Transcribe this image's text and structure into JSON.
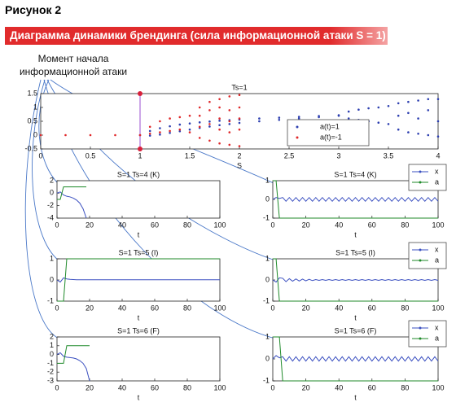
{
  "header": "Рисунок 2",
  "banner": "Диаграмма динамики брендинга (сила информационной атаки S = 1)",
  "annotation": "Момент начала информационной атаки",
  "chart_data": [
    {
      "type": "scatter",
      "title": "Ts=1",
      "x_label": "S",
      "xlim": [
        0,
        4
      ],
      "xticks": [
        0,
        0.5,
        1,
        1.5,
        2,
        2.5,
        3,
        3.5,
        4
      ],
      "ylim": [
        -0.5,
        1.5
      ],
      "yticks": [
        -0.5,
        0,
        0.5,
        1,
        1.5
      ],
      "vline": 1,
      "vline_color": "#9b4fd0",
      "legend": "lower right",
      "series": [
        {
          "name": "a(t)=1",
          "color": "#2d3fb0",
          "x": [
            1,
            1.1,
            1.2,
            1.3,
            1.4,
            1.5,
            1.6,
            1.7,
            1.8,
            1.9,
            2,
            2.2,
            2.4,
            2.6,
            2.8,
            3,
            1.1,
            1.2,
            1.3,
            1.4,
            1.5,
            1.6,
            1.7,
            1.8,
            1.9,
            2,
            2.2,
            2.4,
            2.6,
            2.8,
            3,
            3.1,
            3.2,
            3.3,
            3.4,
            3.5,
            3.1,
            3.2,
            3.3,
            3.4,
            3.5,
            3.6,
            3.6,
            3.6,
            3.7,
            3.7,
            3.7,
            3.8,
            3.8,
            3.8,
            3.9,
            3.9,
            3.9,
            4,
            4,
            4
          ],
          "values": [
            0,
            0.15,
            0.25,
            0.32,
            0.38,
            0.42,
            0.46,
            0.49,
            0.52,
            0.54,
            0.56,
            0.6,
            0.63,
            0.66,
            0.69,
            0.72,
            -0.02,
            0.02,
            0.08,
            0.14,
            0.2,
            0.26,
            0.31,
            0.36,
            0.4,
            0.44,
            0.5,
            0.55,
            0.6,
            0.65,
            0.7,
            0.85,
            0.92,
            0.97,
            1.0,
            1.05,
            0.6,
            0.55,
            0.5,
            0.45,
            0.4,
            0.2,
            0.7,
            1.15,
            0.1,
            0.8,
            1.2,
            0.05,
            0.6,
            1.25,
            0.0,
            0.9,
            1.3,
            -0.05,
            0.5,
            1.3
          ]
        },
        {
          "name": "a(t)=-1",
          "color": "#e0282a",
          "x": [
            0,
            0.25,
            0.5,
            0.75,
            1,
            1.1,
            1.2,
            1.3,
            1.4,
            1.5,
            1.1,
            1.2,
            1.3,
            1.4,
            1.5,
            1.6,
            1.6,
            1.6,
            1.6,
            1.7,
            1.7,
            1.7,
            1.7,
            1.8,
            1.8,
            1.8,
            1.8,
            1.8,
            1.9,
            1.9,
            1.9,
            1.9,
            1.9,
            2,
            2,
            2,
            2,
            2
          ],
          "values": [
            0,
            0,
            0,
            0,
            0,
            0.3,
            0.5,
            0.6,
            0.65,
            0.7,
            0.05,
            0.1,
            0.15,
            0.2,
            0.1,
            -0.1,
            0.3,
            0.7,
            1.0,
            -0.2,
            0.4,
            0.9,
            1.2,
            -0.3,
            0.2,
            0.6,
            1.0,
            1.3,
            -0.35,
            0.1,
            0.5,
            0.9,
            1.4,
            -0.4,
            0.2,
            0.6,
            1.0,
            1.45
          ]
        }
      ]
    },
    {
      "type": "line",
      "title": "S=1 Ts=4 (K)",
      "x_label": "t",
      "xlim": [
        0,
        100
      ],
      "xticks": [
        0,
        20,
        40,
        60,
        80,
        100
      ],
      "ylim": [
        -4,
        2
      ],
      "yticks": [
        -4,
        -2,
        0,
        2
      ],
      "x": [
        0,
        2,
        4,
        6,
        8,
        10,
        12,
        14,
        16,
        18
      ],
      "series": [
        {
          "name": "x",
          "color": "#3a4fc0",
          "values": [
            0,
            0.2,
            -0.3,
            -0.5,
            -0.6,
            -0.8,
            -1.1,
            -1.6,
            -2.5,
            -4
          ]
        },
        {
          "name": "a",
          "color": "#1f8a2a",
          "values": [
            -1,
            -1,
            1,
            1,
            1,
            1,
            1,
            1,
            1,
            1
          ]
        }
      ]
    },
    {
      "type": "line",
      "title": "S=1 Ts=4 (K)",
      "x_label": "t",
      "xlim": [
        0,
        100
      ],
      "xticks": [
        0,
        20,
        40,
        60,
        80,
        100
      ],
      "ylim": [
        -1,
        1
      ],
      "yticks": [
        -1,
        0,
        1
      ],
      "legend": "upper right",
      "x": [
        0,
        2,
        4,
        6,
        8,
        10,
        12,
        14,
        16,
        18,
        20,
        22,
        24,
        26,
        28,
        30,
        32,
        34,
        36,
        38,
        40,
        42,
        44,
        46,
        48,
        50,
        52,
        54,
        56,
        58,
        60,
        62,
        64,
        66,
        68,
        70,
        72,
        74,
        76,
        78,
        80,
        82,
        84,
        86,
        88,
        90,
        92,
        94,
        96,
        98,
        100
      ],
      "series": [
        {
          "name": "x",
          "color": "#3a4fc0",
          "values": [
            0,
            0.1,
            0.05,
            0.1,
            -0.1,
            0.1,
            -0.1,
            0.1,
            -0.1,
            0.1,
            -0.1,
            0.1,
            -0.1,
            0.1,
            -0.1,
            0.1,
            -0.1,
            0.1,
            -0.1,
            0.1,
            -0.1,
            0.1,
            -0.1,
            0.1,
            -0.1,
            0.1,
            -0.1,
            0.1,
            -0.1,
            0.1,
            -0.1,
            0.1,
            -0.1,
            0.1,
            -0.1,
            0.1,
            -0.1,
            0.1,
            -0.1,
            0.1,
            -0.1,
            0.1,
            -0.1,
            0.1,
            -0.1,
            0.1,
            -0.1,
            0.1,
            -0.1,
            0.1,
            -0.1
          ]
        },
        {
          "name": "a",
          "color": "#1f8a2a",
          "values": [
            1,
            1,
            -1,
            -1,
            -1,
            -1,
            -1,
            -1,
            -1,
            -1,
            -1,
            -1,
            -1,
            -1,
            -1,
            -1,
            -1,
            -1,
            -1,
            -1,
            -1,
            -1,
            -1,
            -1,
            -1,
            -1,
            -1,
            -1,
            -1,
            -1,
            -1,
            -1,
            -1,
            -1,
            -1,
            -1,
            -1,
            -1,
            -1,
            -1,
            -1,
            -1,
            -1,
            -1,
            -1,
            -1,
            -1,
            -1,
            -1,
            -1,
            -1
          ]
        }
      ]
    },
    {
      "type": "line",
      "title": "S=1 Ts=5 (I)",
      "x_label": "t",
      "xlim": [
        0,
        100
      ],
      "xticks": [
        0,
        20,
        40,
        60,
        80,
        100
      ],
      "ylim": [
        -1,
        1
      ],
      "yticks": [
        -1,
        0,
        1
      ],
      "x": [
        0,
        2,
        4,
        6,
        8,
        10,
        12,
        14,
        16,
        18,
        20,
        22,
        24,
        26,
        28,
        30,
        32,
        34,
        36,
        38,
        40,
        42,
        44,
        46,
        48,
        50,
        52,
        54,
        56,
        58,
        60,
        62,
        64,
        66,
        68,
        70,
        72,
        74,
        76,
        78,
        80,
        82,
        84,
        86,
        88,
        90,
        92,
        94,
        96,
        98,
        100
      ],
      "series": [
        {
          "name": "x",
          "color": "#3a4fc0",
          "values": [
            0,
            -0.1,
            0.1,
            0.05,
            0.03,
            0.02,
            0.01,
            0.01,
            0.01,
            0.01,
            0.01,
            0.01,
            0.01,
            0.01,
            0.01,
            0.01,
            0.01,
            0.01,
            0.01,
            0.01,
            0.01,
            0.01,
            0.01,
            0.01,
            0.01,
            0.01,
            0.01,
            0.01,
            0.01,
            0.01,
            0.01,
            0.01,
            0.01,
            0.01,
            0.01,
            0.01,
            0.01,
            0.01,
            0.01,
            0.01,
            0.01,
            0.01,
            0.01,
            0.01,
            0.01,
            0.01,
            0.01,
            0.01,
            0.01,
            0.01,
            0.01
          ]
        },
        {
          "name": "a",
          "color": "#1f8a2a",
          "values": [
            -1,
            -1,
            -1,
            1,
            1,
            1,
            1,
            1,
            1,
            1,
            1,
            1,
            1,
            1,
            1,
            1,
            1,
            1,
            1,
            1,
            1,
            1,
            1,
            1,
            1,
            1,
            1,
            1,
            1,
            1,
            1,
            1,
            1,
            1,
            1,
            1,
            1,
            1,
            1,
            1,
            1,
            1,
            1,
            1,
            1,
            1,
            1,
            1,
            1,
            1,
            1
          ]
        }
      ]
    },
    {
      "type": "line",
      "title": "S=1 Ts=5 (I)",
      "x_label": "t",
      "xlim": [
        0,
        100
      ],
      "xticks": [
        0,
        20,
        40,
        60,
        80,
        100
      ],
      "ylim": [
        -1,
        1
      ],
      "yticks": [
        -1,
        0,
        1
      ],
      "legend": "upper right",
      "x": [
        0,
        2,
        4,
        6,
        8,
        10,
        12,
        14,
        16,
        18,
        20,
        22,
        24,
        26,
        28,
        30,
        32,
        34,
        36,
        38,
        40,
        42,
        44,
        46,
        48,
        50,
        52,
        54,
        56,
        58,
        60,
        62,
        64,
        66,
        68,
        70,
        72,
        74,
        76,
        78,
        80,
        82,
        84,
        86,
        88,
        90,
        92,
        94,
        96,
        98,
        100
      ],
      "series": [
        {
          "name": "x",
          "color": "#3a4fc0",
          "values": [
            0,
            -0.1,
            0.1,
            0.08,
            -0.08,
            0.06,
            -0.06,
            0.05,
            -0.05,
            0.04,
            -0.04,
            0.03,
            -0.03,
            0.02,
            -0.02,
            0.02,
            -0.02,
            0.02,
            -0.02,
            0.02,
            -0.02,
            0.02,
            -0.02,
            0.02,
            -0.02,
            0.02,
            -0.02,
            0.02,
            -0.02,
            0.02,
            -0.02,
            0.02,
            -0.02,
            0.02,
            -0.02,
            0.02,
            -0.02,
            0.02,
            -0.02,
            0.02,
            -0.02,
            0.02,
            -0.02,
            0.02,
            -0.02,
            0.02,
            -0.02,
            0.02,
            -0.02,
            0.02,
            -0.02
          ]
        },
        {
          "name": "a",
          "color": "#1f8a2a",
          "values": [
            1,
            1,
            -1,
            -1,
            -1,
            -1,
            -1,
            -1,
            -1,
            -1,
            -1,
            -1,
            -1,
            -1,
            -1,
            -1,
            -1,
            -1,
            -1,
            -1,
            -1,
            -1,
            -1,
            -1,
            -1,
            -1,
            -1,
            -1,
            -1,
            -1,
            -1,
            -1,
            -1,
            -1,
            -1,
            -1,
            -1,
            -1,
            -1,
            -1,
            -1,
            -1,
            -1,
            -1,
            -1,
            -1,
            -1,
            -1,
            -1,
            -1,
            -1
          ]
        }
      ]
    },
    {
      "type": "line",
      "title": "S=1 Ts=6 (F)",
      "x_label": "t",
      "xlim": [
        0,
        100
      ],
      "xticks": [
        0,
        20,
        40,
        60,
        80,
        100
      ],
      "ylim": [
        -3,
        2
      ],
      "yticks": [
        -3,
        -2,
        -1,
        0,
        1,
        2
      ],
      "x": [
        0,
        2,
        4,
        6,
        8,
        10,
        12,
        14,
        16,
        18,
        20
      ],
      "series": [
        {
          "name": "x",
          "color": "#3a4fc0",
          "values": [
            0,
            0.2,
            -0.2,
            -0.3,
            -0.35,
            -0.4,
            -0.5,
            -0.7,
            -1.0,
            -1.6,
            -3
          ]
        },
        {
          "name": "a",
          "color": "#1f8a2a",
          "values": [
            -1,
            -1,
            -1,
            1,
            1,
            1,
            1,
            1,
            1,
            1,
            1
          ]
        }
      ]
    },
    {
      "type": "line",
      "title": "S=1 Ts=6 (F)",
      "x_label": "t",
      "xlim": [
        0,
        100
      ],
      "xticks": [
        0,
        20,
        40,
        60,
        80,
        100
      ],
      "ylim": [
        -1,
        1
      ],
      "yticks": [
        -1,
        0,
        1
      ],
      "legend": "upper right",
      "x": [
        0,
        2,
        4,
        6,
        8,
        10,
        12,
        14,
        16,
        18,
        20,
        22,
        24,
        26,
        28,
        30,
        32,
        34,
        36,
        38,
        40,
        42,
        44,
        46,
        48,
        50,
        52,
        54,
        56,
        58,
        60,
        62,
        64,
        66,
        68,
        70,
        72,
        74,
        76,
        78,
        80,
        82,
        84,
        86,
        88,
        90,
        92,
        94,
        96,
        98,
        100
      ],
      "series": [
        {
          "name": "x",
          "color": "#3a4fc0",
          "values": [
            0,
            0.15,
            0.05,
            0.1,
            -0.1,
            0.1,
            -0.1,
            0.1,
            -0.1,
            0.1,
            -0.1,
            0.1,
            -0.1,
            0.1,
            -0.1,
            0.1,
            -0.1,
            0.1,
            -0.1,
            0.1,
            -0.1,
            0.1,
            -0.1,
            0.1,
            -0.1,
            0.1,
            -0.1,
            0.1,
            -0.1,
            0.1,
            -0.1,
            0.1,
            -0.1,
            0.1,
            -0.1,
            0.1,
            -0.1,
            0.1,
            -0.1,
            0.1,
            -0.1,
            0.1,
            -0.1,
            0.1,
            -0.1,
            0.1,
            -0.1,
            0.1,
            -0.1,
            0.1,
            -0.1
          ]
        },
        {
          "name": "a",
          "color": "#1f8a2a",
          "values": [
            1,
            1,
            1,
            -1,
            -1,
            -1,
            -1,
            -1,
            -1,
            -1,
            -1,
            -1,
            -1,
            -1,
            -1,
            -1,
            -1,
            -1,
            -1,
            -1,
            -1,
            -1,
            -1,
            -1,
            -1,
            -1,
            -1,
            -1,
            -1,
            -1,
            -1,
            -1,
            -1,
            -1,
            -1,
            -1,
            -1,
            -1,
            -1,
            -1,
            -1,
            -1,
            -1,
            -1,
            -1,
            -1,
            -1,
            -1,
            -1,
            -1,
            -1
          ]
        }
      ]
    }
  ]
}
